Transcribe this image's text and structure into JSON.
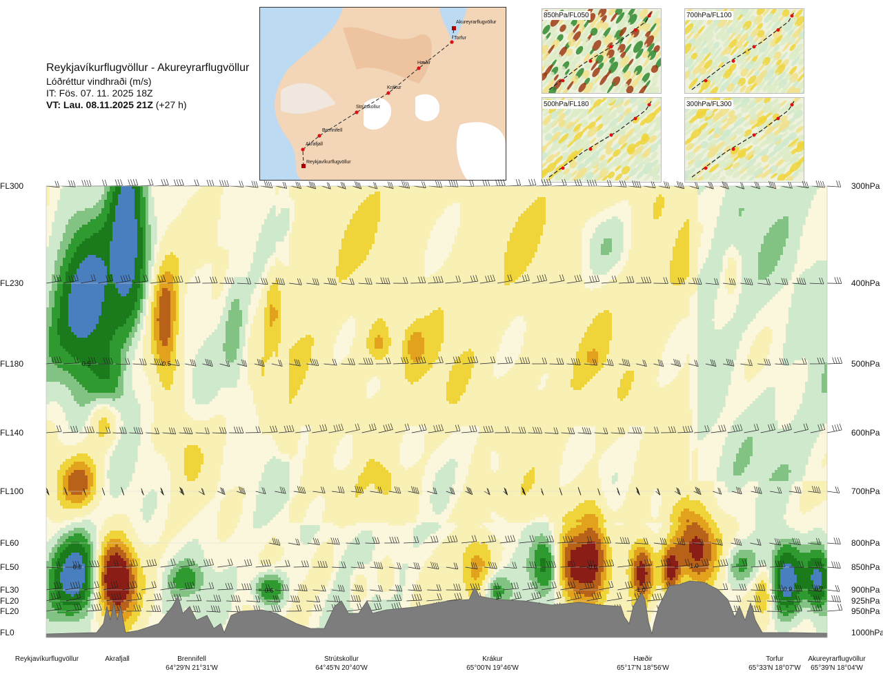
{
  "header": {
    "route": "Reykjavíkurflugvöllur - Akureyrarflugvöllur",
    "parameter": "Lóðréttur vindhraði (m/s)",
    "issue_time": "IT: Fös. 07. 11. 2025 18Z",
    "valid_time": "VT: Lau. 08.11.2025 21Z",
    "lead": "(+27 h)"
  },
  "mini_maps": [
    {
      "label": "850hPa/FL050"
    },
    {
      "label": "700hPa/FL100"
    },
    {
      "label": "500hPa/FL180"
    },
    {
      "label": "300hPa/FL300"
    }
  ],
  "route_map": {
    "places": [
      {
        "name": "Akureyrarflugvöllur"
      },
      {
        "name": "Torfur"
      },
      {
        "name": "Hæðir"
      },
      {
        "name": "Krákur"
      },
      {
        "name": "Strútskollur"
      },
      {
        "name": "Brennifell"
      },
      {
        "name": "Akrafjall"
      },
      {
        "name": "Reykjavíkurflugvöllur"
      }
    ]
  },
  "chart_data": {
    "type": "heatmap",
    "title": "Lóðréttur vindhraði (m/s)",
    "levels": [
      {
        "fl": "FL300",
        "hpa": "300hPa"
      },
      {
        "fl": "FL230",
        "hpa": "400hPa"
      },
      {
        "fl": "FL180",
        "hpa": "500hPa"
      },
      {
        "fl": "FL140",
        "hpa": "600hPa"
      },
      {
        "fl": "FL100",
        "hpa": "700hPa"
      },
      {
        "fl": "FL60",
        "hpa": "800hPa"
      },
      {
        "fl": "FL50",
        "hpa": "850hPa"
      },
      {
        "fl": "FL30",
        "hpa": "900hPa"
      },
      {
        "fl": "FL20",
        "hpa": "925hPa"
      },
      {
        "fl": "FL20",
        "hpa": "950hPa"
      },
      {
        "fl": "FL0",
        "hpa": "1000hPa"
      }
    ],
    "waypoints": [
      {
        "name": "Reykjavíkurflugvöllur",
        "coord": ""
      },
      {
        "name": "Akrafjall",
        "coord": ""
      },
      {
        "name": "Brennifell",
        "coord": "64°29'N 21°31'W"
      },
      {
        "name": "Strútskollur",
        "coord": "64°45'N 20°40'W"
      },
      {
        "name": "Krákur",
        "coord": "65°00'N 19°46'W"
      },
      {
        "name": "Hæðir",
        "coord": "65°17'N 18°56'W"
      },
      {
        "name": "Torfur",
        "coord": "65°33'N 18°07'W"
      },
      {
        "name": "Akureyrarflugvöllur",
        "coord": "65°39'N 18°04'W"
      }
    ],
    "contour_labels": [
      "0.5",
      "-0.5",
      "0.9",
      "0.6",
      "-0.6",
      "-1.0",
      "-1.0",
      "0.9",
      "0.7"
    ],
    "colors": {
      "rise_strong": "#4a7fbf",
      "rise_3": "#1b7a1b",
      "rise_2": "#2f9a2f",
      "rise_1": "#82c282",
      "rise_0": "#cfe9cd",
      "neutral": "#fbf7dc",
      "sink_0": "#f8f0b4",
      "sink_1": "#efd53a",
      "sink_2": "#e3a21e",
      "sink_3": "#b86219",
      "sink_strong": "#8a1e16",
      "terrain": "#7d7d7d"
    }
  }
}
